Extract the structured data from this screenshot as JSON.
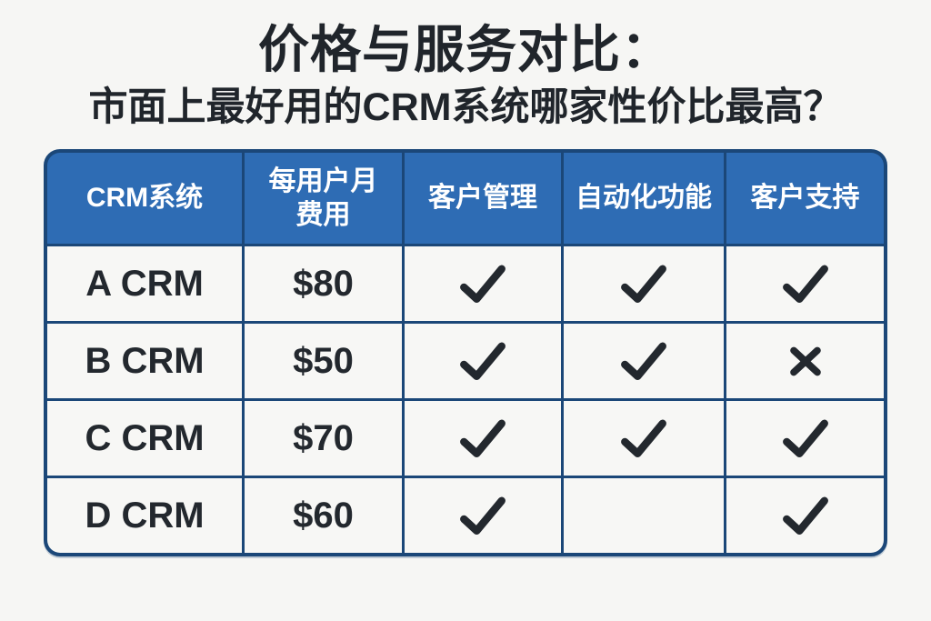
{
  "title": "价格与服务对比：",
  "subtitle": "市面上最好用的CRM系统哪家性价比最高？",
  "chart_data": {
    "type": "table",
    "title": "价格与服务对比：",
    "subtitle": "市面上最好用的CRM系统哪家性价比最高？",
    "columns": [
      "CRM系统",
      "每用户月费用",
      "客户管理",
      "自动化功能",
      "客户支持"
    ],
    "rows": [
      {
        "system": "A CRM",
        "price": "$80",
        "customer_management": "check",
        "automation": "check",
        "customer_support": "check"
      },
      {
        "system": "B CRM",
        "price": "$50",
        "customer_management": "check",
        "automation": "check",
        "customer_support": "cross"
      },
      {
        "system": "C CRM",
        "price": "$70",
        "customer_management": "check",
        "automation": "check",
        "customer_support": "check"
      },
      {
        "system": "D CRM",
        "price": "$60",
        "customer_management": "check",
        "automation": "none",
        "customer_support": "check"
      }
    ],
    "mark_legend": {
      "check": "included",
      "cross": "not included",
      "none": "blank cell"
    }
  },
  "icons": {
    "check": "check-icon",
    "cross": "cross-icon"
  },
  "colors": {
    "page_background": "#f6f6f4",
    "header_background": "#2e6cb4",
    "header_text": "#ffffff",
    "border": "#1b4778",
    "cell_background": "#f7f7f5",
    "body_text": "#23282e"
  }
}
